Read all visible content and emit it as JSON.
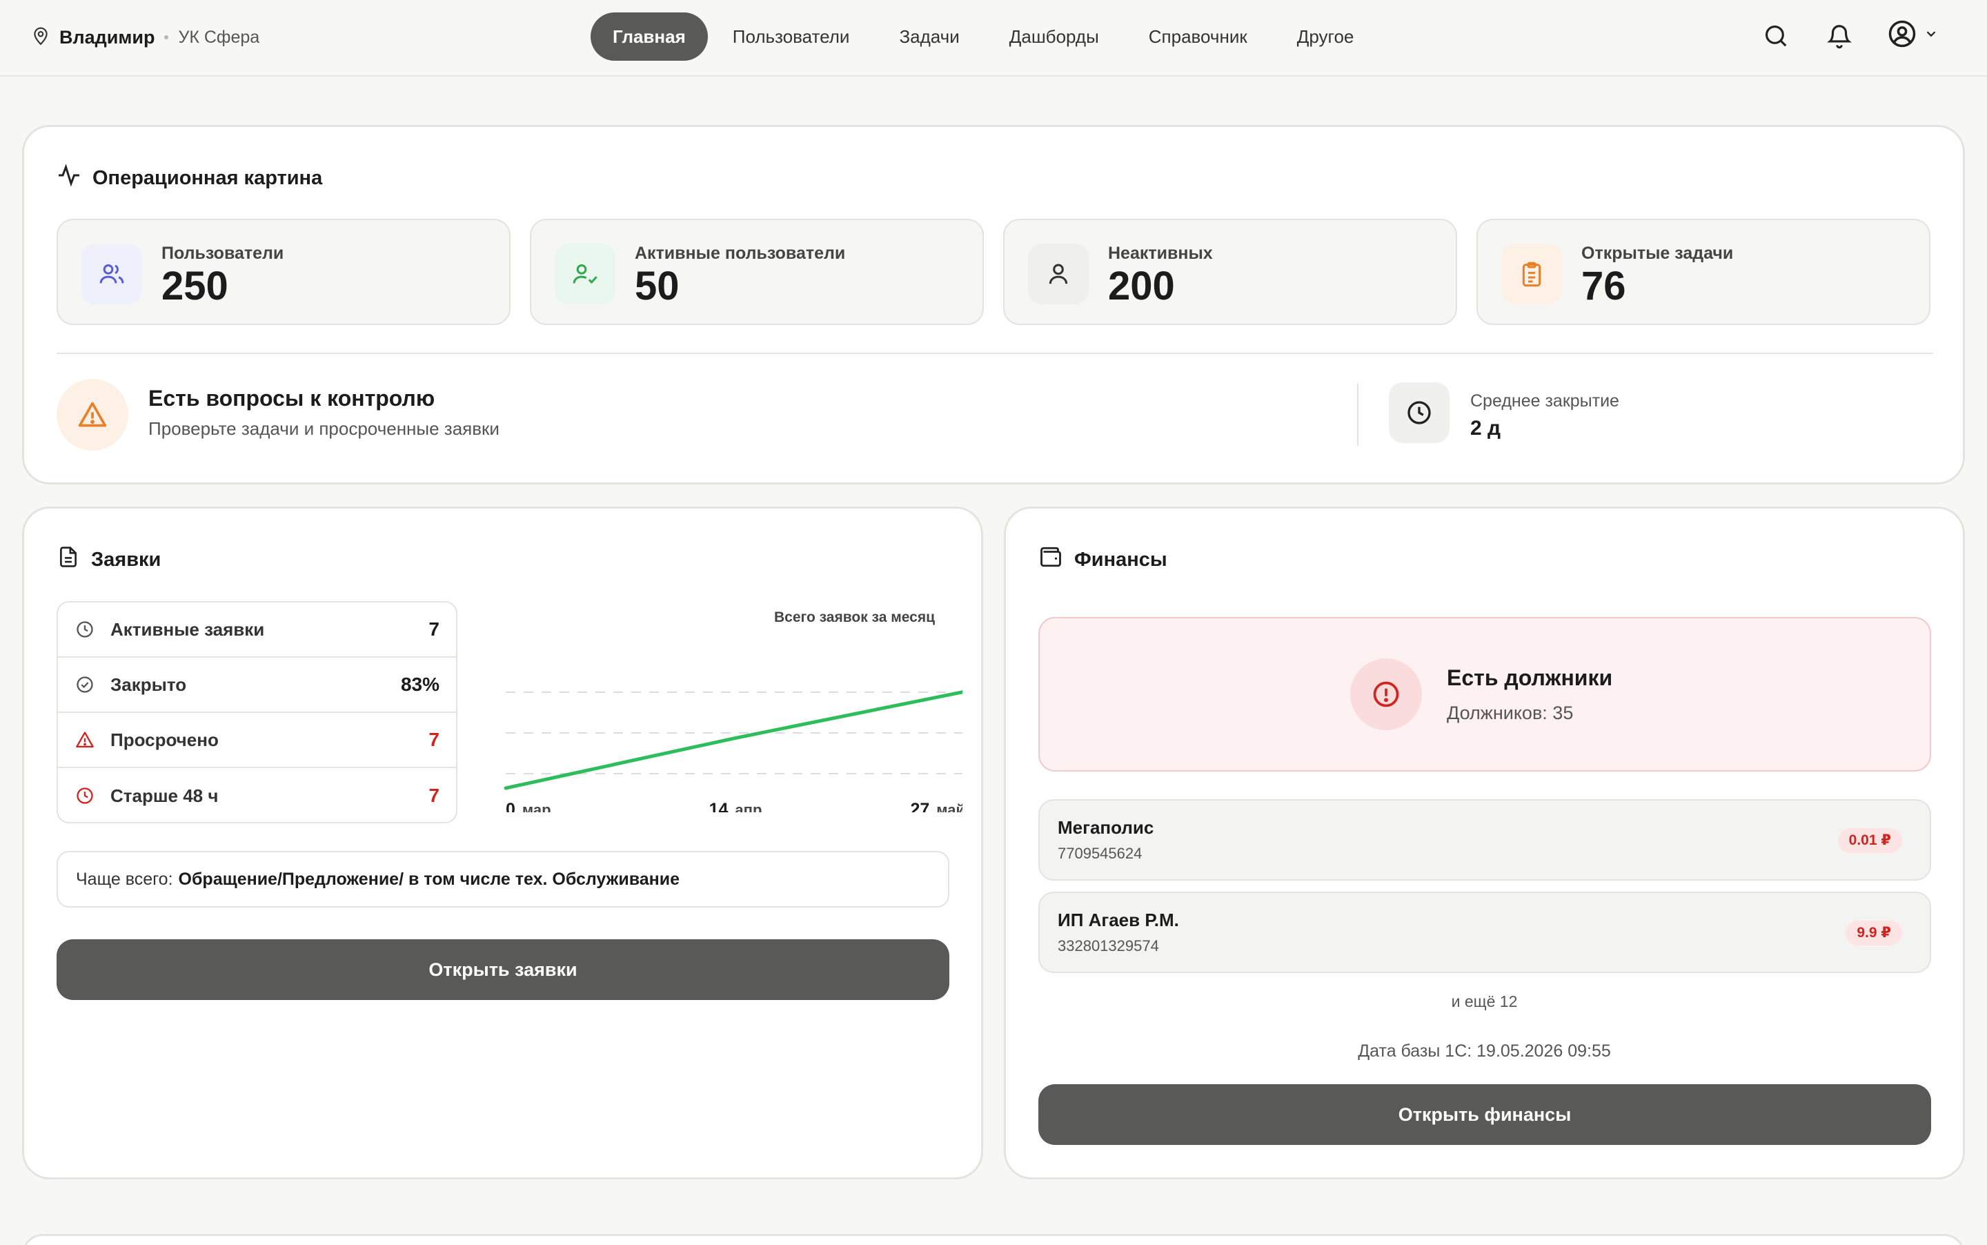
{
  "header": {
    "city": "Владимир",
    "org": "УК Сфера",
    "nav": [
      "Главная",
      "Пользователи",
      "Задачи",
      "Дашборды",
      "Справочник",
      "Другое"
    ],
    "active_nav": "Главная"
  },
  "operations": {
    "title": "Операционная картина",
    "stats": [
      {
        "label": "Пользователи",
        "value": "250",
        "icon": "users-icon",
        "color": "#5b5bd6"
      },
      {
        "label": "Активные пользователи",
        "value": "50",
        "icon": "user-check-icon",
        "color": "#2fa84f"
      },
      {
        "label": "Неактивных",
        "value": "200",
        "icon": "user-icon",
        "color": "#333333"
      },
      {
        "label": "Открытые задачи",
        "value": "76",
        "icon": "clipboard-icon",
        "color": "#e8802a"
      }
    ],
    "alert_title": "Есть вопросы к контролю",
    "alert_sub": "Проверьте задачи и просроченные заявки",
    "avg_label": "Среднее закрытие",
    "avg_value": "2 д"
  },
  "requests": {
    "title": "Заявки",
    "rows": [
      {
        "label": "Активные заявки",
        "value": "7"
      },
      {
        "label": "Закрыто",
        "value": "83%"
      },
      {
        "label": "Просрочено",
        "value": "7"
      },
      {
        "label": "Старше 48 ч",
        "value": "7"
      }
    ],
    "freq_prefix": "Чаще всего:",
    "freq_value": "Обращение/Предложение/ в том числе тех. Обслуживание",
    "button": "Открыть заявки"
  },
  "chart_data": {
    "type": "line",
    "title": "Всего заявок за месяц",
    "x": [
      "0 мар",
      "14 апр",
      "27 май"
    ],
    "x_ticks": [
      {
        "num": "0",
        "unit": "мар"
      },
      {
        "num": "14",
        "unit": "апр"
      },
      {
        "num": "27",
        "unit": "май"
      }
    ],
    "values": [
      0,
      14,
      27
    ],
    "ylim": [
      0,
      27
    ],
    "grid": true,
    "color": "#2dbd5a"
  },
  "finance": {
    "title": "Финансы",
    "debt_title": "Есть должники",
    "debt_sub": "Должников: 35",
    "debtors": [
      {
        "name": "Мегаполис",
        "inn": "7709545624",
        "amount": "0.01 ₽"
      },
      {
        "name": "ИП Агаев Р.М.",
        "inn": "332801329574",
        "amount": "9.9 ₽"
      }
    ],
    "more": "и ещё 12",
    "db_date": "Дата базы 1С: 19.05.2026 09:55",
    "button": "Открыть финансы"
  }
}
